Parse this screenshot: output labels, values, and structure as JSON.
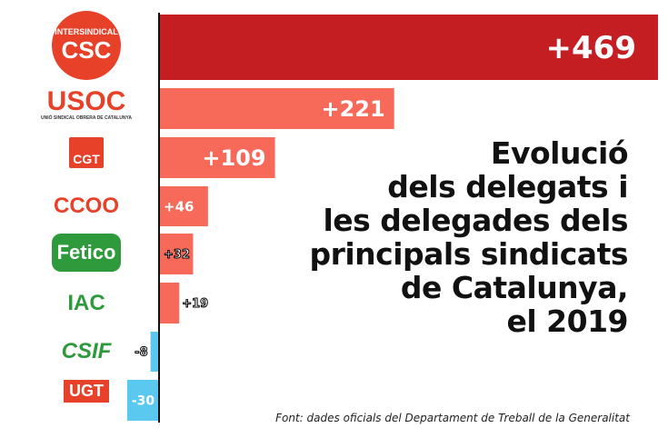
{
  "chart_data": {
    "type": "bar",
    "orientation": "horizontal",
    "title": "Evolució\ndels delegats i\nles delegades dels\nprincipals sindicats\nde Catalunya,\nel 2019",
    "categories": [
      "Intersindical CSC",
      "USOC",
      "CGT",
      "CCOO",
      "Fetico",
      "IAC",
      "CSIF",
      "UGT"
    ],
    "values": [
      469,
      221,
      109,
      46,
      32,
      19,
      -8,
      -30
    ],
    "labels": [
      "+469",
      "+221",
      "+109",
      "+46",
      "+32",
      "+19",
      "-8",
      "-30"
    ],
    "colors": {
      "top": "#c41e22",
      "positive": "#f76a5a",
      "negative": "#5bc8f0"
    },
    "xlim": [
      -30,
      469
    ],
    "grid": false,
    "source": "Font: dades oficials del Departament de Treball de la Generalitat"
  },
  "logos": [
    {
      "text": "CSC",
      "subtext": "INTERSINDICAL",
      "color": "#e8412a"
    },
    {
      "text": "USOC",
      "subtext": "UNIÓ SINDICAL OBRERA DE CATALUNYA",
      "color": "#e8412a"
    },
    {
      "text": "CGT",
      "color": "#e8412a"
    },
    {
      "text": "CCOO",
      "color": "#e8412a"
    },
    {
      "text": "Fetico",
      "color": "#2e9a3c"
    },
    {
      "text": "IAC",
      "color": "#2e9a3c"
    },
    {
      "text": "CSIF",
      "color": "#2e9a3c"
    },
    {
      "text": "UGT",
      "color": "#e8412a"
    }
  ]
}
